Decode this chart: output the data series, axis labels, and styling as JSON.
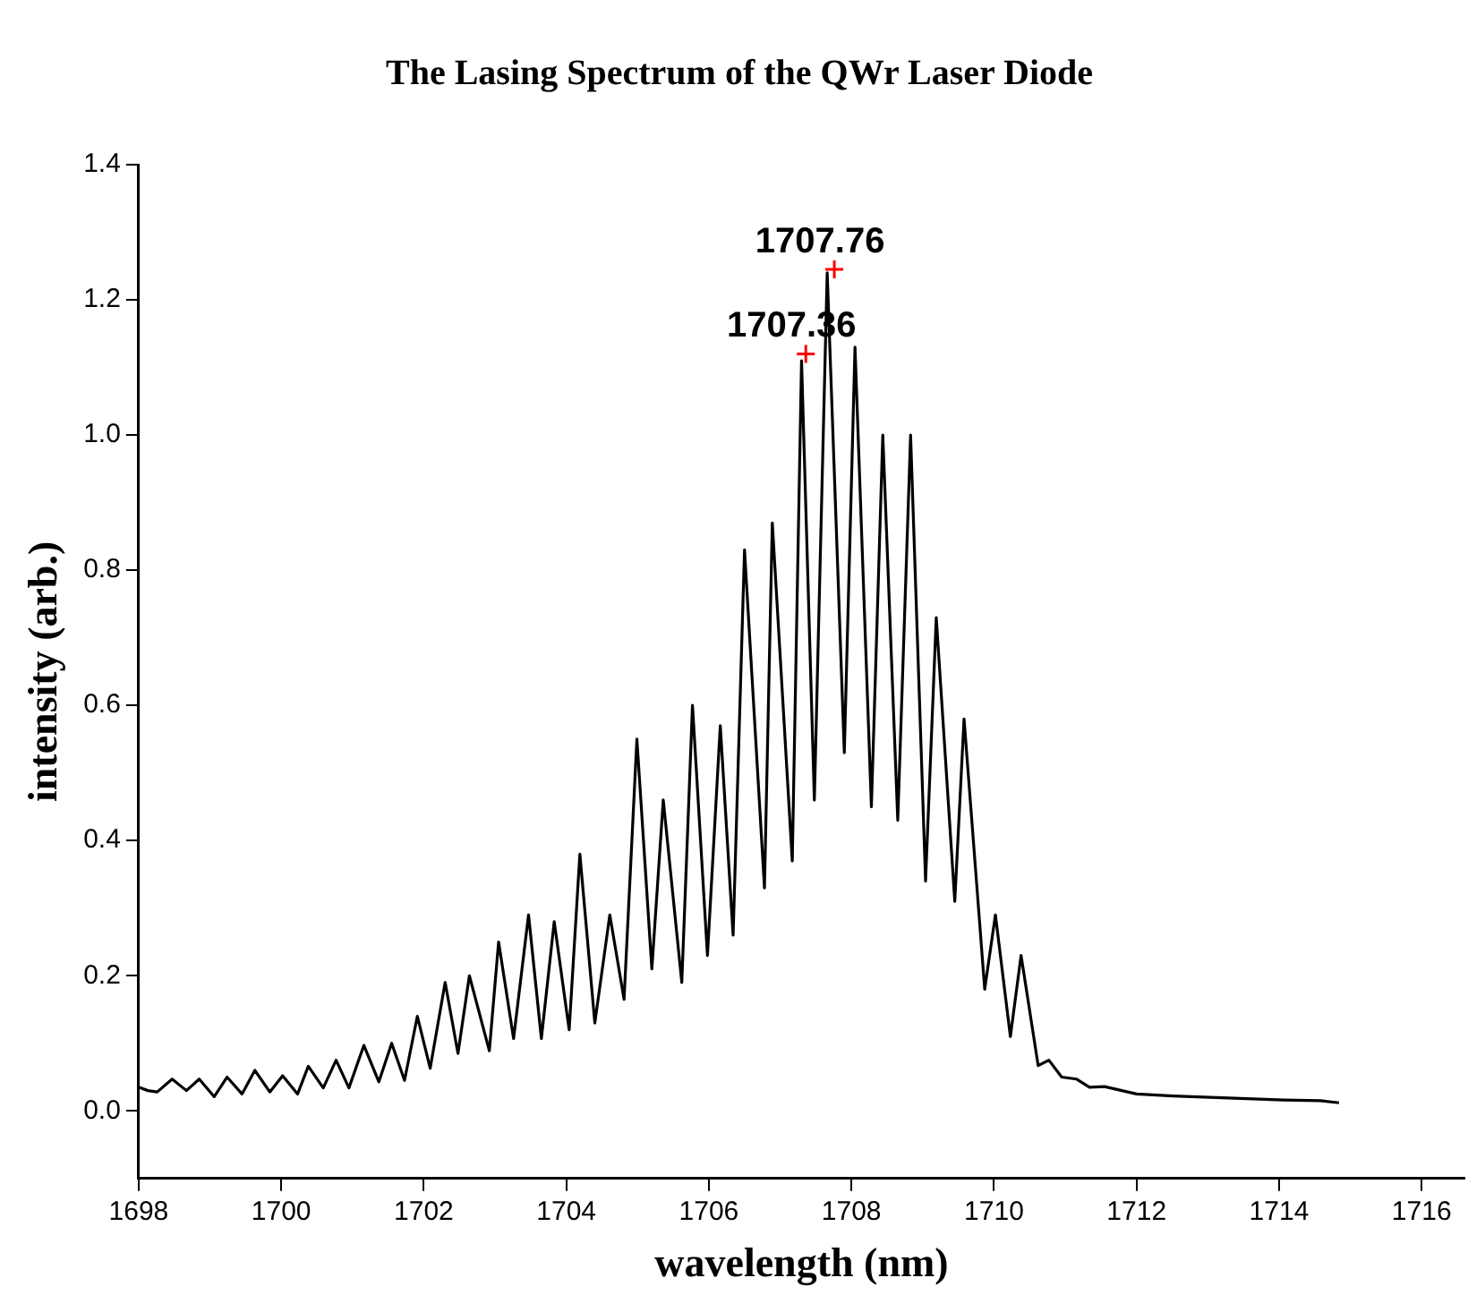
{
  "chart_data": {
    "type": "line",
    "title": "The Lasing Spectrum of the QWr Laser Diode",
    "xlabel": "wavelength (nm)",
    "ylabel": "intensity (arb.)",
    "series": [
      {
        "color": "#000000",
        "x": [
          1698.0,
          1698.13,
          1698.26,
          1698.47,
          1698.67,
          1698.85,
          1699.06,
          1699.24,
          1699.45,
          1699.63,
          1699.84,
          1700.02,
          1700.23,
          1700.38,
          1700.59,
          1700.77,
          1700.95,
          1701.16,
          1701.37,
          1701.55,
          1701.73,
          1701.91,
          1702.09,
          1702.3,
          1702.48,
          1702.64,
          1702.92,
          1703.05,
          1703.26,
          1703.47,
          1703.65,
          1703.83,
          1704.04,
          1704.19,
          1704.4,
          1704.61,
          1704.81,
          1704.99,
          1705.2,
          1705.36,
          1705.62,
          1705.77,
          1705.98,
          1706.16,
          1706.34,
          1706.5,
          1706.78,
          1706.89,
          1707.17,
          1707.3,
          1707.48,
          1707.66,
          1707.9,
          1708.05,
          1708.28,
          1708.44,
          1708.65,
          1708.83,
          1709.04,
          1709.19,
          1709.45,
          1709.58,
          1709.87,
          1710.02,
          1710.23,
          1710.38,
          1710.62,
          1710.77,
          1710.95,
          1711.16,
          1711.34,
          1711.55,
          1712.0,
          1712.51,
          1713.03,
          1713.55,
          1714.06,
          1714.58,
          1714.84
        ],
        "values": [
          0.035,
          0.03,
          0.028,
          0.047,
          0.03,
          0.047,
          0.021,
          0.05,
          0.025,
          0.06,
          0.028,
          0.052,
          0.025,
          0.066,
          0.034,
          0.075,
          0.034,
          0.097,
          0.043,
          0.1,
          0.045,
          0.14,
          0.063,
          0.19,
          0.085,
          0.2,
          0.089,
          0.25,
          0.107,
          0.29,
          0.107,
          0.28,
          0.12,
          0.38,
          0.13,
          0.29,
          0.165,
          0.55,
          0.21,
          0.46,
          0.19,
          0.6,
          0.23,
          0.57,
          0.26,
          0.83,
          0.33,
          0.87,
          0.37,
          1.11,
          0.46,
          1.24,
          0.53,
          1.13,
          0.45,
          1.0,
          0.43,
          1.0,
          0.34,
          0.73,
          0.31,
          0.58,
          0.18,
          0.29,
          0.11,
          0.23,
          0.067,
          0.075,
          0.05,
          0.047,
          0.035,
          0.036,
          0.025,
          0.022,
          0.02,
          0.018,
          0.016,
          0.015,
          0.012
        ]
      }
    ],
    "annotations": [
      {
        "text": "1707.76",
        "x": 1707.76,
        "y": 1.245
      },
      {
        "text": "1707.36",
        "x": 1707.36,
        "y": 1.12
      }
    ],
    "xlim": [
      1698,
      1716.6
    ],
    "xticks": [
      1698,
      1700,
      1702,
      1704,
      1706,
      1708,
      1710,
      1712,
      1714,
      1716
    ],
    "ylim": [
      -0.1,
      1.4
    ],
    "yticks": [
      {
        "value": 0,
        "label": "0.0"
      },
      {
        "value": 0.2,
        "label": "0.2"
      },
      {
        "value": 0.4,
        "label": "0.4"
      },
      {
        "value": 0.6,
        "label": "0.6"
      },
      {
        "value": 0.8,
        "label": "0.8"
      },
      {
        "value": 1,
        "label": "1.0"
      },
      {
        "value": 1.2,
        "label": "1.2"
      },
      {
        "value": 1.4,
        "label": "1.4"
      }
    ],
    "grid": false,
    "legend": false,
    "marker": "none",
    "line_style": "solid"
  }
}
